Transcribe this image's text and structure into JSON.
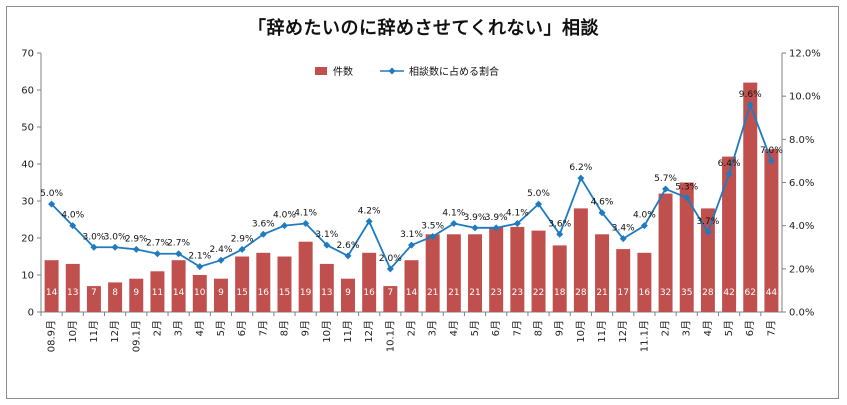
{
  "chart_data": {
    "type": "bar",
    "title": "「辞めたいのに辞めさせてくれない」相談",
    "categories": [
      "08.9月",
      "10月",
      "11月",
      "12月",
      "09.1月",
      "2月",
      "3月",
      "4月",
      "5月",
      "6月",
      "7月",
      "8月",
      "9月",
      "10月",
      "11月",
      "12月",
      "10.1月",
      "2月",
      "3月",
      "4月",
      "5月",
      "6月",
      "7月",
      "8月",
      "9月",
      "10月",
      "11月",
      "12月",
      "11.1月",
      "2月",
      "3月",
      "4月",
      "5月",
      "6月",
      "7月"
    ],
    "series": [
      {
        "name": "件数",
        "type": "bar",
        "axis": "left",
        "color": "#c0504d",
        "values": [
          14,
          13,
          7,
          8,
          9,
          11,
          14,
          10,
          9,
          15,
          16,
          15,
          19,
          13,
          9,
          16,
          7,
          14,
          21,
          21,
          21,
          23,
          23,
          22,
          18,
          28,
          21,
          17,
          16,
          32,
          35,
          28,
          42,
          62,
          44
        ],
        "labels": [
          "14",
          "13",
          "7",
          "8",
          "9",
          "11",
          "14",
          "10",
          "9",
          "15",
          "16",
          "15",
          "19",
          "13",
          "9",
          "16",
          "7",
          "14",
          "21",
          "21",
          "21",
          "23",
          "23",
          "22",
          "18",
          "28",
          "21",
          "17",
          "16",
          "32",
          "35",
          "28",
          "42",
          "62",
          "44"
        ]
      },
      {
        "name": "相談数に占める割合",
        "type": "line",
        "axis": "right",
        "color": "#1f7bbf",
        "values": [
          5.0,
          4.0,
          3.0,
          3.0,
          2.9,
          2.7,
          2.7,
          2.1,
          2.4,
          2.9,
          3.6,
          4.0,
          4.1,
          3.1,
          2.6,
          4.2,
          2.0,
          3.1,
          3.5,
          4.1,
          3.9,
          3.9,
          4.1,
          5.0,
          3.6,
          6.2,
          4.6,
          3.4,
          4.0,
          5.7,
          5.3,
          3.7,
          6.4,
          9.6,
          7.0
        ],
        "labels": [
          "5.0%",
          "4.0%",
          "3.0%",
          "3.0%",
          "2.9%",
          "2.7%",
          "2.7%",
          "2.1%",
          "2.4%",
          "2.9%",
          "3.6%",
          "4.0%",
          "4.1%",
          "3.1%",
          "2.6%",
          "4.2%",
          "2.0%",
          "3.1%",
          "3.5%",
          "4.1%",
          "3.9%",
          "3.9%",
          "4.1%",
          "5.0%",
          "3.6%",
          "6.2%",
          "4.6%",
          "3.4%",
          "4.0%",
          "5.7%",
          "5.3%",
          "3.7%",
          "6.4%",
          "9.6%",
          "7.0%"
        ]
      }
    ],
    "y_left": {
      "min": 0,
      "max": 70,
      "ticks": [
        "0",
        "10",
        "20",
        "30",
        "40",
        "50",
        "60",
        "70"
      ]
    },
    "y_right": {
      "min": 0,
      "max": 12,
      "ticks": [
        "0.0%",
        "2.0%",
        "4.0%",
        "6.0%",
        "8.0%",
        "10.0%",
        "12.0%"
      ]
    },
    "legend_position": "top-center",
    "grid": false
  }
}
